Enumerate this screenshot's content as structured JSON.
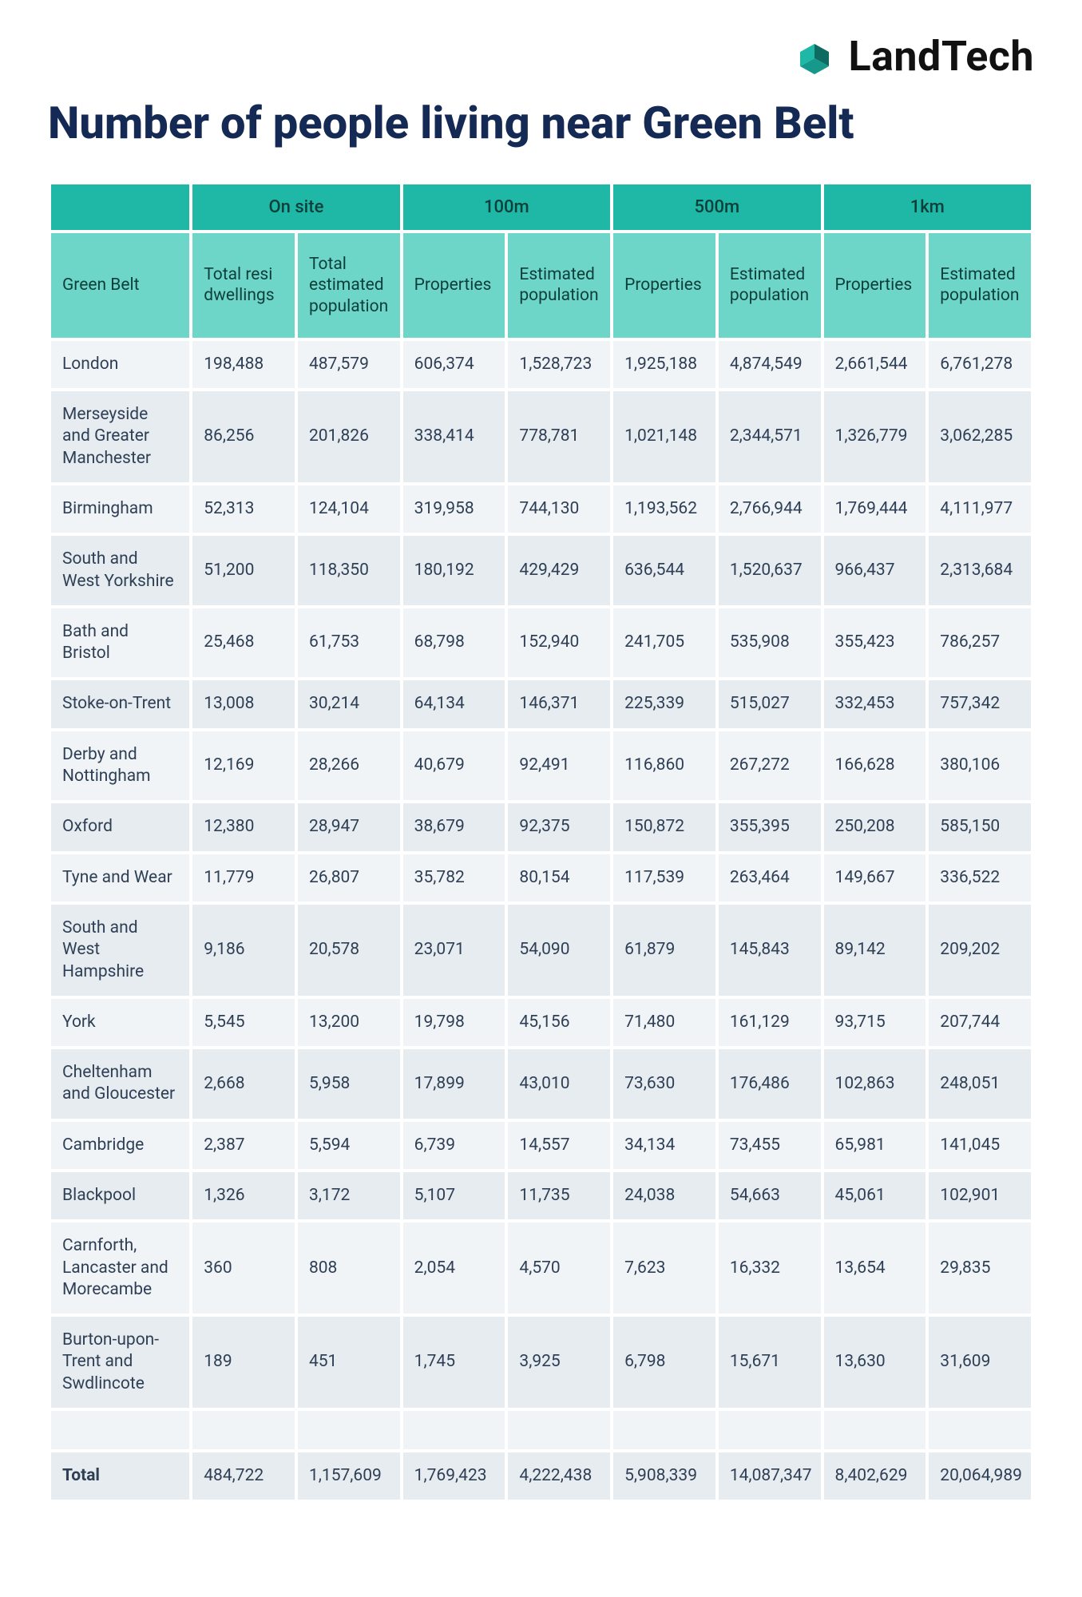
{
  "brand": {
    "name": "LandTech"
  },
  "title": "Number of people living near Green Belt",
  "colors": {
    "teal": "#1fb8a6",
    "teal_light": "#6dd6c9",
    "zebra_a": "#f0f4f7",
    "zebra_b": "#e6ecef",
    "navy": "#142a54",
    "body_text": "#2f3f56",
    "page_bg": "#ffffff"
  },
  "typography": {
    "title_fontsize_pt": 42,
    "header_fontsize_pt": 16,
    "cell_fontsize_pt": 16,
    "title_weight": 800
  },
  "table": {
    "type": "table",
    "group_headers": [
      "",
      "On site",
      "100m",
      "500m",
      "1km"
    ],
    "sub_headers": [
      "Green Belt",
      "Total resi dwellings",
      "Total estimated population",
      "Properties",
      "Estimated population",
      "Properties",
      "Estimated population",
      "Properties",
      "Estimated population"
    ],
    "rows": [
      {
        "label": "London",
        "cells": [
          "198,488",
          "487,579",
          "606,374",
          "1,528,723",
          "1,925,188",
          "4,874,549",
          "2,661,544",
          "6,761,278"
        ]
      },
      {
        "label": "Merseyside and Greater Manchester",
        "cells": [
          "86,256",
          "201,826",
          "338,414",
          "778,781",
          "1,021,148",
          "2,344,571",
          "1,326,779",
          "3,062,285"
        ]
      },
      {
        "label": "Birmingham",
        "cells": [
          "52,313",
          "124,104",
          "319,958",
          "744,130",
          "1,193,562",
          "2,766,944",
          "1,769,444",
          "4,111,977"
        ]
      },
      {
        "label": "South and West Yorkshire",
        "cells": [
          "51,200",
          "118,350",
          "180,192",
          "429,429",
          "636,544",
          "1,520,637",
          "966,437",
          "2,313,684"
        ]
      },
      {
        "label": "Bath and Bristol",
        "cells": [
          "25,468",
          "61,753",
          "68,798",
          "152,940",
          "241,705",
          "535,908",
          "355,423",
          "786,257"
        ]
      },
      {
        "label": "Stoke-on-Trent",
        "cells": [
          "13,008",
          "30,214",
          "64,134",
          "146,371",
          "225,339",
          "515,027",
          "332,453",
          "757,342"
        ]
      },
      {
        "label": "Derby and Nottingham",
        "cells": [
          "12,169",
          "28,266",
          "40,679",
          "92,491",
          "116,860",
          "267,272",
          "166,628",
          "380,106"
        ]
      },
      {
        "label": "Oxford",
        "cells": [
          "12,380",
          "28,947",
          "38,679",
          "92,375",
          "150,872",
          "355,395",
          "250,208",
          "585,150"
        ]
      },
      {
        "label": "Tyne and Wear",
        "cells": [
          "11,779",
          "26,807",
          "35,782",
          "80,154",
          "117,539",
          "263,464",
          "149,667",
          "336,522"
        ]
      },
      {
        "label": "South and West Hampshire",
        "cells": [
          "9,186",
          "20,578",
          "23,071",
          "54,090",
          "61,879",
          "145,843",
          "89,142",
          "209,202"
        ]
      },
      {
        "label": "York",
        "cells": [
          "5,545",
          "13,200",
          "19,798",
          "45,156",
          "71,480",
          "161,129",
          "93,715",
          "207,744"
        ]
      },
      {
        "label": "Cheltenham and Gloucester",
        "cells": [
          "2,668",
          "5,958",
          "17,899",
          "43,010",
          "73,630",
          "176,486",
          "102,863",
          "248,051"
        ]
      },
      {
        "label": "Cambridge",
        "cells": [
          "2,387",
          "5,594",
          "6,739",
          "14,557",
          "34,134",
          "73,455",
          "65,981",
          "141,045"
        ]
      },
      {
        "label": "Blackpool",
        "cells": [
          "1,326",
          "3,172",
          "5,107",
          "11,735",
          "24,038",
          "54,663",
          "45,061",
          "102,901"
        ]
      },
      {
        "label": "Carnforth, Lancaster and Morecambe",
        "cells": [
          "360",
          "808",
          "2,054",
          "4,570",
          "7,623",
          "16,332",
          "13,654",
          "29,835"
        ]
      },
      {
        "label": "Burton-upon-Trent and Swdlincote",
        "cells": [
          "189",
          "451",
          "1,745",
          "3,925",
          "6,798",
          "15,671",
          "13,630",
          "31,609"
        ]
      }
    ],
    "total": {
      "label": "Total",
      "cells": [
        "484,722",
        "1,157,609",
        "1,769,423",
        "4,222,438",
        "5,908,339",
        "14,087,347",
        "8,402,629",
        "20,064,989"
      ]
    }
  }
}
